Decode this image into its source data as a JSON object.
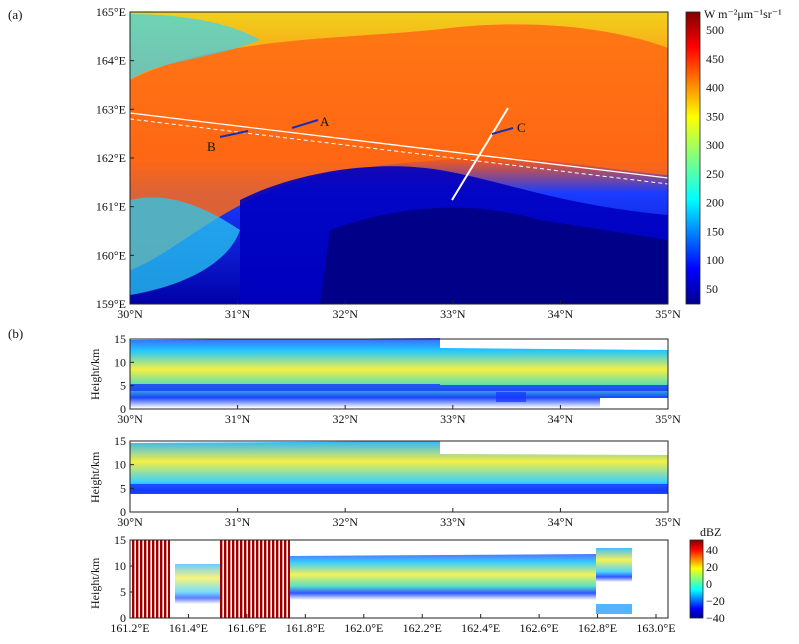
{
  "panel_a": {
    "label": "(a)",
    "y_ticks": [
      "165°E",
      "164°E",
      "163°E",
      "162°E",
      "161°E",
      "160°E",
      "159°E"
    ],
    "x_ticks": [
      "30°N",
      "31°N",
      "32°N",
      "33°N",
      "34°N",
      "35°N"
    ],
    "annotations": [
      "A",
      "B",
      "C"
    ],
    "colorbar": {
      "title": "W m⁻²μm⁻¹sr⁻¹",
      "ticks": [
        "500",
        "450",
        "400",
        "350",
        "300",
        "250",
        "200",
        "150",
        "100",
        "50"
      ]
    }
  },
  "panel_b": {
    "label": "(b)",
    "ylabel": "Height/km",
    "y_ticks": [
      "15",
      "10",
      "5",
      "0"
    ],
    "x_ticks_lat": [
      "30°N",
      "31°N",
      "32°N",
      "33°N",
      "34°N",
      "35°N"
    ],
    "x_ticks_lon": [
      "161.2°E",
      "161.4°E",
      "161.6°E",
      "161.8°E",
      "162.0°E",
      "162.2°E",
      "162.4°E",
      "162.6°E",
      "162.8°E",
      "163.0°E"
    ],
    "colorbar": {
      "title": "dBZ",
      "ticks": [
        "40",
        "20",
        "0",
        "−20",
        "−40"
      ]
    }
  }
}
